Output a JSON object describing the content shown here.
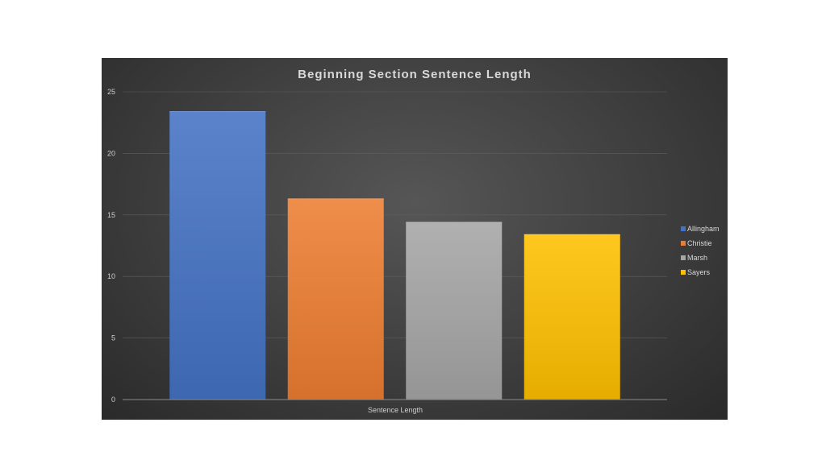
{
  "chart_data": {
    "type": "bar",
    "title": "Beginning Section Sentence Length",
    "xlabel": "",
    "ylabel": "",
    "categories": [
      "Sentence Length"
    ],
    "series": [
      {
        "name": "Allingham",
        "values": [
          23.4
        ],
        "color": "#4472c4"
      },
      {
        "name": "Christie",
        "values": [
          16.3
        ],
        "color": "#ed7d31"
      },
      {
        "name": "Marsh",
        "values": [
          14.4
        ],
        "color": "#a5a5a5"
      },
      {
        "name": "Sayers",
        "values": [
          13.4
        ],
        "color": "#ffc000"
      }
    ],
    "ylim": [
      0,
      25
    ],
    "yticks": [
      0,
      5,
      10,
      15,
      20,
      25
    ],
    "grid": true,
    "legend": "right"
  }
}
